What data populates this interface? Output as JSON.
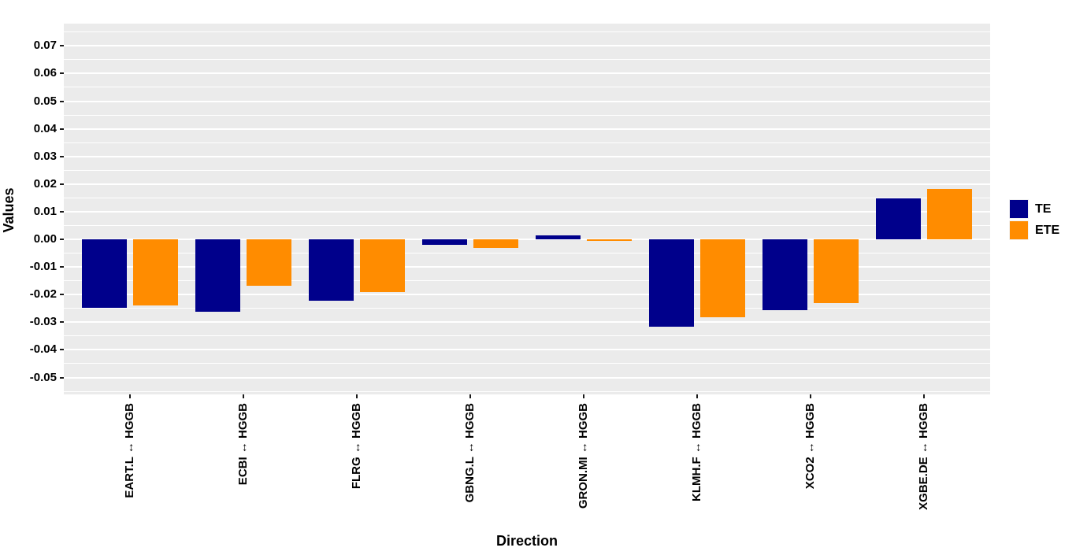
{
  "figure": {
    "background": "#FFFFFF",
    "panel_background": "#EBEBEB",
    "gridline_color": "#FFFFFF",
    "text_color": "#000000"
  },
  "chart_data": {
    "type": "bar",
    "title": "",
    "xlabel": "Direction",
    "ylabel": "Values",
    "categories": [
      "EART.L ↔ HGGB",
      "ECBI ↔ HGGB",
      "FLRG ↔ HGGB",
      "GBNG.L ↔ HGGB",
      "GRON.MI ↔ HGGB",
      "KLMH.F ↔ HGGB",
      "XCO2 ↔ HGGB",
      "XGBE.DE ↔ HGGB"
    ],
    "series": [
      {
        "name": "TE",
        "color": "#00008B",
        "values": [
          -0.0247,
          -0.0262,
          -0.0221,
          -0.0021,
          0.0015,
          -0.0317,
          -0.0255,
          0.0149
        ]
      },
      {
        "name": "ETE",
        "color": "#FF8C00",
        "values": [
          -0.0238,
          -0.0169,
          -0.0191,
          -0.0032,
          -0.0005,
          -0.0283,
          -0.0231,
          0.0183
        ]
      }
    ],
    "ylim": [
      -0.0562,
      0.0778
    ],
    "yticks": [
      -0.05,
      -0.04,
      -0.03,
      -0.02,
      -0.01,
      0,
      0.01,
      0.02,
      0.03,
      0.04,
      0.05,
      0.06,
      0.07
    ],
    "ytick_labels": [
      "-0.05",
      "-0.04",
      "-0.03",
      "-0.02",
      "-0.01",
      "0.00",
      "0.01",
      "0.02",
      "0.03",
      "0.04",
      "0.05",
      "0.06",
      "0.07"
    ],
    "minor_grid_step": 0.005,
    "grid": "major and minor horizontal white gridlines on gray panel",
    "legend_position": "right",
    "legend_entries": [
      "TE",
      "ETE"
    ],
    "bar_grouping": "dodged pairs per category"
  }
}
